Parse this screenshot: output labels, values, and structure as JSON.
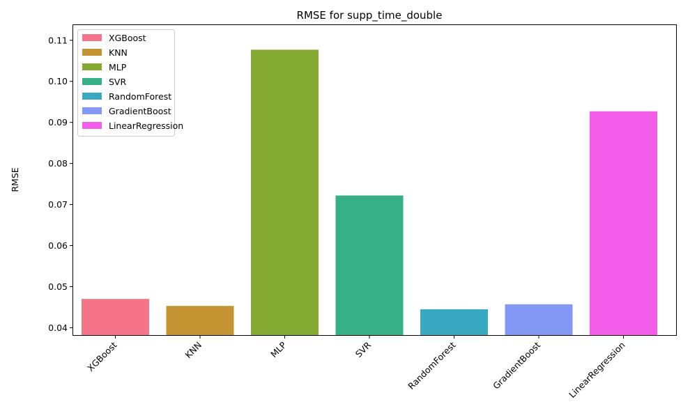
{
  "chart_data": {
    "type": "bar",
    "title": "RMSE for supp_time_double",
    "xlabel": "",
    "ylabel": "RMSE",
    "categories": [
      "XGBoost",
      "KNN",
      "MLP",
      "SVR",
      "RandomForest",
      "GradientBoost",
      "LinearRegression"
    ],
    "values": [
      0.047,
      0.0453,
      0.1077,
      0.0722,
      0.0445,
      0.0457,
      0.0927
    ],
    "colors": [
      "#f5748a",
      "#c59432",
      "#83a933",
      "#36b087",
      "#38a9c1",
      "#8298f4",
      "#f45de9"
    ],
    "ylim": [
      0.0382,
      0.1137
    ],
    "yticks": [
      0.04,
      0.05,
      0.06,
      0.07,
      0.08,
      0.09,
      0.1,
      0.11
    ],
    "ytick_labels": [
      "0.04",
      "0.05",
      "0.06",
      "0.07",
      "0.08",
      "0.09",
      "0.10",
      "0.11"
    ],
    "legend": {
      "position": "top-left",
      "entries": [
        "XGBoost",
        "KNN",
        "MLP",
        "SVR",
        "RandomForest",
        "GradientBoost",
        "LinearRegression"
      ]
    },
    "grid": false
  }
}
